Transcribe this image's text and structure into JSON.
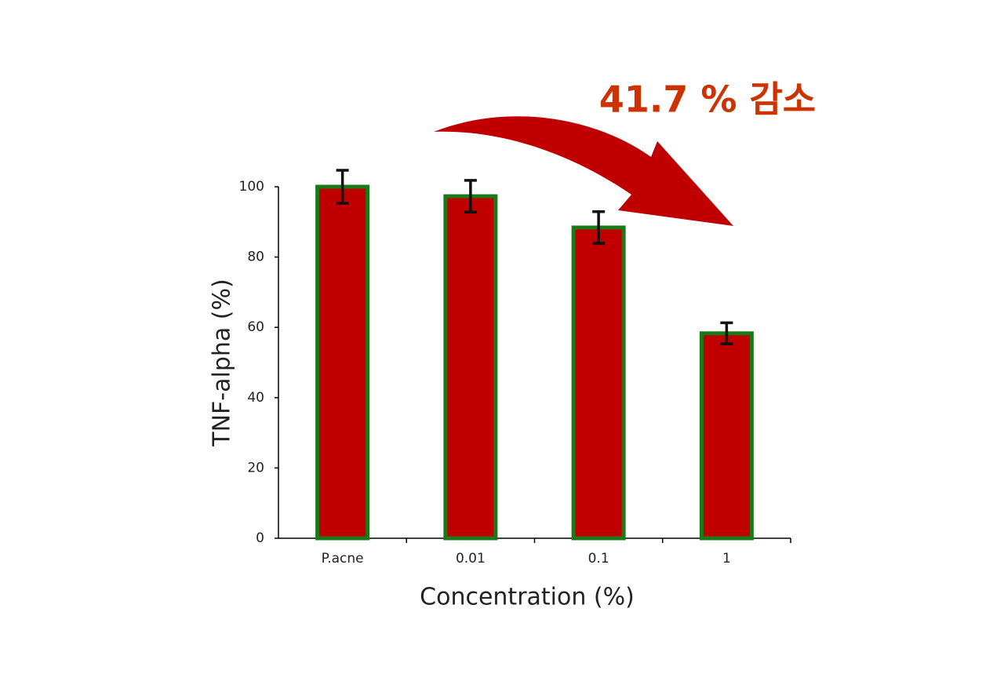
{
  "chart_data": {
    "type": "bar",
    "annotation": "41.7 % 감소",
    "x_label": "Concentration (%)",
    "y_label": "TNF-alpha (%)",
    "categories": [
      "P.acne",
      "0.01",
      "0.1",
      "1"
    ],
    "values": [
      100,
      97.3,
      88.4,
      58.3
    ],
    "errors": [
      4.7,
      4.5,
      4.5,
      3
    ],
    "color": "#c00000",
    "edge_color": "#1a7a1a",
    "error_color": "#111111",
    "annotation_color": "#cc3300",
    "ylim": [
      0,
      100
    ],
    "yticks": [
      0,
      20,
      40,
      60,
      80,
      100
    ],
    "grid": false
  }
}
